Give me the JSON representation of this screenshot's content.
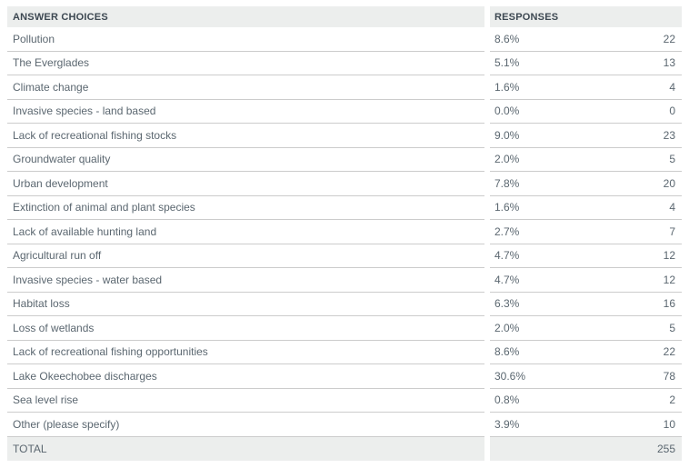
{
  "table": {
    "columns": {
      "answer": "ANSWER CHOICES",
      "responses": "RESPONSES"
    },
    "rows": [
      {
        "label": "Pollution",
        "percent": "8.6%",
        "count": "22"
      },
      {
        "label": "The Everglades",
        "percent": "5.1%",
        "count": "13"
      },
      {
        "label": "Climate change",
        "percent": "1.6%",
        "count": "4"
      },
      {
        "label": "Invasive species - land based",
        "percent": "0.0%",
        "count": "0"
      },
      {
        "label": "Lack of recreational fishing stocks",
        "percent": "9.0%",
        "count": "23"
      },
      {
        "label": "Groundwater quality",
        "percent": "2.0%",
        "count": "5"
      },
      {
        "label": "Urban development",
        "percent": "7.8%",
        "count": "20"
      },
      {
        "label": "Extinction of animal and plant species",
        "percent": "1.6%",
        "count": "4"
      },
      {
        "label": "Lack of available hunting land",
        "percent": "2.7%",
        "count": "7"
      },
      {
        "label": "Agricultural run off",
        "percent": "4.7%",
        "count": "12"
      },
      {
        "label": "Invasive species - water based",
        "percent": "4.7%",
        "count": "12"
      },
      {
        "label": "Habitat loss",
        "percent": "6.3%",
        "count": "16"
      },
      {
        "label": "Loss of wetlands",
        "percent": "2.0%",
        "count": "5"
      },
      {
        "label": "Lack of recreational fishing opportunities",
        "percent": "8.6%",
        "count": "22"
      },
      {
        "label": "Lake Okeechobee discharges",
        "percent": "30.6%",
        "count": "78"
      },
      {
        "label": "Sea level rise",
        "percent": "0.8%",
        "count": "2"
      },
      {
        "label": "Other (please specify)",
        "percent": "3.9%",
        "count": "10"
      }
    ],
    "total": {
      "label": "TOTAL",
      "count": "255"
    }
  },
  "chart_data": {
    "type": "table",
    "title": "",
    "columns": [
      "ANSWER CHOICES",
      "RESPONSES %",
      "RESPONSES COUNT"
    ],
    "categories": [
      "Pollution",
      "The Everglades",
      "Climate change",
      "Invasive species - land based",
      "Lack of recreational fishing stocks",
      "Groundwater quality",
      "Urban development",
      "Extinction of animal and plant species",
      "Lack of available hunting land",
      "Agricultural run off",
      "Invasive species - water based",
      "Habitat loss",
      "Loss of wetlands",
      "Lack of recreational fishing opportunities",
      "Lake Okeechobee discharges",
      "Sea level rise",
      "Other (please specify)"
    ],
    "series": [
      {
        "name": "Responses %",
        "values": [
          8.6,
          5.1,
          1.6,
          0.0,
          9.0,
          2.0,
          7.8,
          1.6,
          2.7,
          4.7,
          4.7,
          6.3,
          2.0,
          8.6,
          30.6,
          0.8,
          3.9
        ]
      },
      {
        "name": "Responses count",
        "values": [
          22,
          13,
          4,
          0,
          23,
          5,
          20,
          4,
          7,
          12,
          12,
          16,
          5,
          22,
          78,
          2,
          10
        ]
      }
    ],
    "total": 255
  },
  "colors": {
    "header_bg": "#eceeed",
    "row_border": "#cccccc",
    "header_text": "#3d4852",
    "body_text": "#5b6770"
  }
}
